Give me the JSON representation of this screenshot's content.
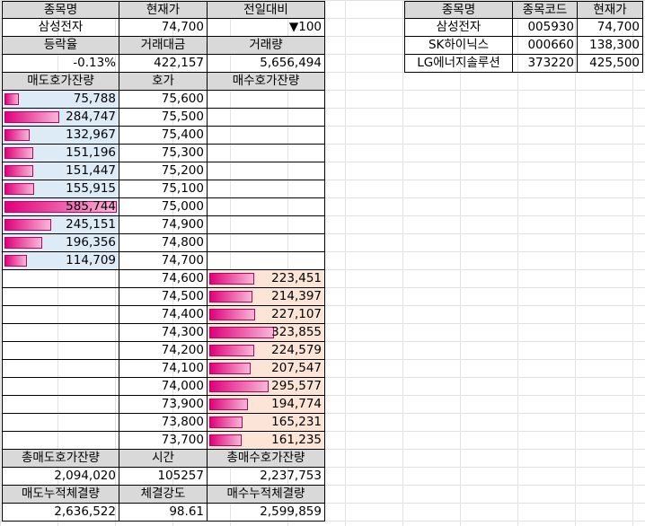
{
  "t1": {
    "headers": [
      "종목명",
      "현재가",
      "전일대비"
    ],
    "stock_name": "삼성전자",
    "current_price": "74,700",
    "change": "▼100",
    "headers2": [
      "등락율",
      "거래대금",
      "거래량"
    ],
    "change_rate": "-0.13%",
    "trade_value": "422,157",
    "volume": "5,656,494",
    "headers3": [
      "매도호가잔량",
      "호가",
      "매수호가잔량"
    ],
    "asks": [
      {
        "qty": "75,788",
        "price": "75,600",
        "ratio": 0.129
      },
      {
        "qty": "284,747",
        "price": "75,500",
        "ratio": 0.486
      },
      {
        "qty": "132,967",
        "price": "75,400",
        "ratio": 0.227
      },
      {
        "qty": "151,196",
        "price": "75,300",
        "ratio": 0.258
      },
      {
        "qty": "151,447",
        "price": "75,200",
        "ratio": 0.259
      },
      {
        "qty": "155,915",
        "price": "75,100",
        "ratio": 0.266
      },
      {
        "qty": "585,744",
        "price": "75,000",
        "ratio": 1.0
      },
      {
        "qty": "245,151",
        "price": "74,900",
        "ratio": 0.419
      },
      {
        "qty": "196,356",
        "price": "74,800",
        "ratio": 0.335
      },
      {
        "qty": "114,709",
        "price": "74,700",
        "ratio": 0.196
      }
    ],
    "bids": [
      {
        "qty": "223,451",
        "price": "74,600",
        "ratio": 0.691
      },
      {
        "qty": "214,397",
        "price": "74,500",
        "ratio": 0.663
      },
      {
        "qty": "227,107",
        "price": "74,400",
        "ratio": 0.702
      },
      {
        "qty": "323,855",
        "price": "74,300",
        "ratio": 1.0
      },
      {
        "qty": "224,579",
        "price": "74,200",
        "ratio": 0.694
      },
      {
        "qty": "207,547",
        "price": "74,100",
        "ratio": 0.641
      },
      {
        "qty": "295,577",
        "price": "74,000",
        "ratio": 0.913
      },
      {
        "qty": "194,774",
        "price": "73,900",
        "ratio": 0.602
      },
      {
        "qty": "165,231",
        "price": "73,800",
        "ratio": 0.51
      },
      {
        "qty": "161,235",
        "price": "73,700",
        "ratio": 0.498
      }
    ],
    "headers4": [
      "총매도호가잔량",
      "시간",
      "총매수호가잔량"
    ],
    "total_ask": "2,094,020",
    "time": "105257",
    "total_bid": "2,237,753",
    "headers5": [
      "매도누적체결량",
      "체결강도",
      "매수누적체결량"
    ],
    "cum_sell": "2,636,522",
    "strength": "98.61",
    "cum_buy": "2,599,859"
  },
  "t2": {
    "headers": [
      "종목명",
      "종목코드",
      "현재가"
    ],
    "rows": [
      {
        "name": "삼성전자",
        "code": "005930",
        "price": "74,700"
      },
      {
        "name": "SK하이닉스",
        "code": "000660",
        "price": "138,300"
      },
      {
        "name": "LG에너지솔루션",
        "code": "373220",
        "price": "425,500"
      }
    ]
  },
  "icons": {
    "dropdown": "dropdown-arrow-icon"
  },
  "colors": {
    "ask_bg": "#ddebf7",
    "bid_bg": "#fce4d6",
    "header_bg": "#d9d9d9",
    "bar": "#e0007a"
  }
}
